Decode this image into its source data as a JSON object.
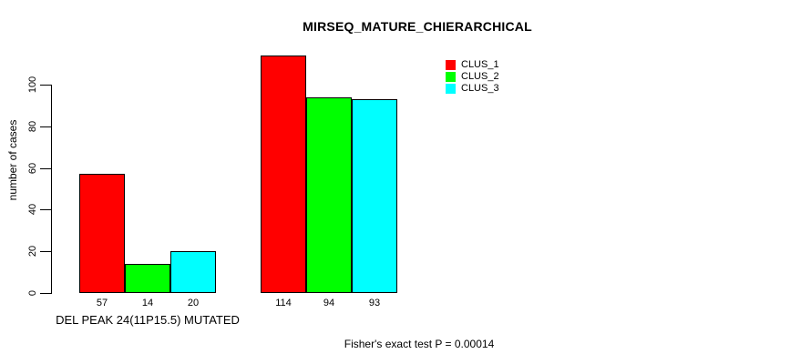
{
  "chart_data": {
    "type": "bar",
    "title": "MIRSEQ_MATURE_CHIERARCHICAL",
    "ylabel": "number of cases",
    "xlabel": "",
    "ylim": [
      0,
      100
    ],
    "yticks": [
      0,
      20,
      40,
      60,
      80,
      100
    ],
    "grid": false,
    "legend_position": "top-right",
    "categories": [
      "DEL PEAK 24(11P15.5) MUTATED",
      ""
    ],
    "series": [
      {
        "name": "CLUS_1",
        "color": "#ff0000",
        "values": [
          57,
          114
        ]
      },
      {
        "name": "CLUS_2",
        "color": "#00ff00",
        "values": [
          14,
          94
        ]
      },
      {
        "name": "CLUS_3",
        "color": "#00ffff",
        "values": [
          20,
          93
        ]
      }
    ],
    "bar_value_labels": [
      [
        57,
        14,
        20
      ],
      [
        114,
        94,
        93
      ]
    ],
    "annotation": "Fisher's exact test P = 0.00014"
  },
  "colors": {
    "background": "#ffffff",
    "axis": "#000000",
    "text": "#000000",
    "bar_border": "#000000"
  }
}
